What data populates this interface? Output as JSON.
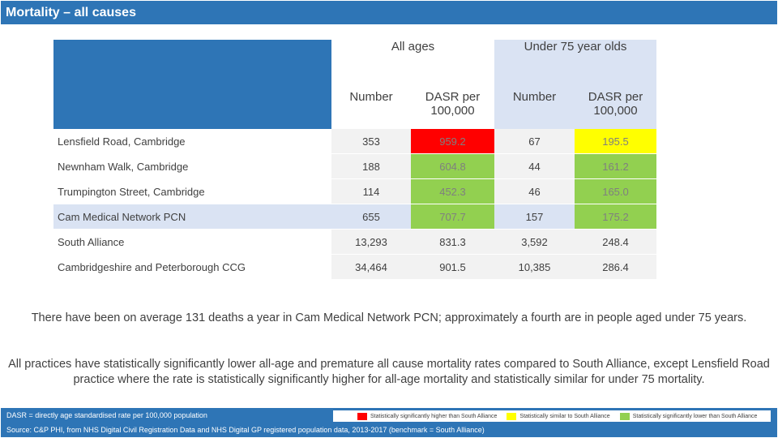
{
  "title": "Mortality – all causes",
  "table": {
    "group_headers": [
      "All ages",
      "Under 75 year olds"
    ],
    "sub_headers": [
      "Number",
      "DASR per 100,000",
      "Number",
      "DASR per 100,000"
    ],
    "rows": [
      {
        "name": "Lensfield Road, Cambridge",
        "values": [
          "353",
          "959.2",
          "67",
          "195.5"
        ],
        "flags": [
          "",
          "higher",
          "",
          "similar"
        ]
      },
      {
        "name": "Newnham Walk, Cambridge",
        "values": [
          "188",
          "604.8",
          "44",
          "161.2"
        ],
        "flags": [
          "",
          "lower",
          "",
          "lower"
        ]
      },
      {
        "name": "Trumpington Street, Cambridge",
        "values": [
          "114",
          "452.3",
          "46",
          "165.0"
        ],
        "flags": [
          "",
          "lower",
          "",
          "lower"
        ]
      },
      {
        "name": "Cam Medical Network PCN",
        "values": [
          "655",
          "707.7",
          "157",
          "175.2"
        ],
        "flags": [
          "",
          "lower",
          "",
          "lower"
        ]
      },
      {
        "name": "South Alliance",
        "values": [
          "13,293",
          "831.3",
          "3,592",
          "248.4"
        ],
        "flags": [
          "",
          "",
          "",
          ""
        ]
      },
      {
        "name": "Cambridgeshire and Peterborough CCG",
        "values": [
          "34,464",
          "901.5",
          "10,385",
          "286.4"
        ],
        "flags": [
          "",
          "",
          "",
          ""
        ]
      }
    ]
  },
  "notes": [
    "There have been on average 131 deaths a year in Cam Medical Network PCN; approximately a fourth are in people aged under 75 years.",
    "All practices have statistically significantly lower all-age and premature all cause mortality rates compared to South Alliance, except Lensfield Road practice where the rate is statistically significantly higher for all-age mortality and statistically similar for under 75 mortality."
  ],
  "footer": {
    "definition": "DASR = directly age standardised rate per 100,000 population",
    "source": "Source: C&P PHI, from NHS Digital Civil Registration Data and NHS Digital GP registered population data, 2013-2017 (benchmark = South Alliance)",
    "legend": [
      {
        "label": "Statistically significantly higher than South Alliance",
        "color": "#ff0000"
      },
      {
        "label": "Statistically similar to South Alliance",
        "color": "#ffff00"
      },
      {
        "label": "Statistically significantly lower than South Alliance",
        "color": "#92d050"
      }
    ]
  },
  "colors": {
    "brand": "#2e75b6",
    "light_blue": "#dae3f3",
    "higher": "#ff0000",
    "similar": "#ffff00",
    "lower": "#92d050"
  }
}
